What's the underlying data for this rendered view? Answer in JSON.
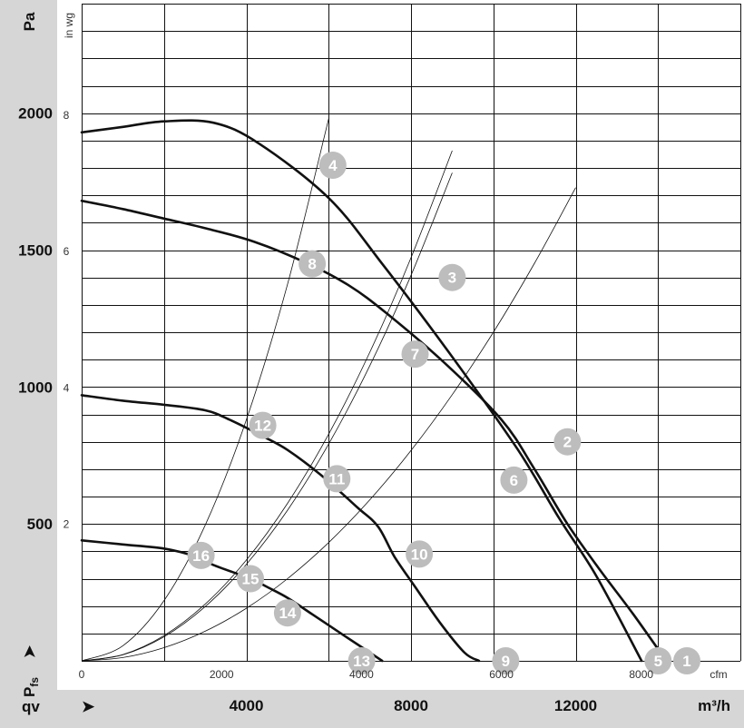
{
  "chart_data": {
    "type": "line",
    "x_units": {
      "primary": "m³/h",
      "secondary": "cfm",
      "primary_label": "qv",
      "primary_ticks": [
        4000,
        8000,
        12000
      ],
      "secondary_ticks": [
        0,
        2000,
        4000,
        6000,
        8000
      ],
      "xlim_m3h": [
        0,
        16000
      ]
    },
    "y_units": {
      "primary": "Pa",
      "secondary": "in wg",
      "primary_label": "Pfs",
      "primary_ticks": [
        500,
        1000,
        1500,
        2000
      ],
      "secondary_ticks": [
        2,
        4,
        6,
        8
      ],
      "ylim_pa": [
        0,
        2400
      ]
    },
    "grid": true,
    "series": [
      {
        "points": [
          [
            0,
            1930
          ],
          [
            1000,
            1950
          ],
          [
            2000,
            1970
          ],
          [
            3200,
            1965
          ],
          [
            4300,
            1890
          ],
          [
            6000,
            1690
          ],
          [
            7300,
            1450
          ],
          [
            9000,
            1110
          ],
          [
            10600,
            770
          ],
          [
            11600,
            520
          ],
          [
            12500,
            310
          ],
          [
            13600,
            0
          ]
        ]
      },
      {
        "points": [
          [
            0,
            1680
          ],
          [
            1000,
            1650
          ],
          [
            2000,
            1615
          ],
          [
            3000,
            1580
          ],
          [
            4200,
            1530
          ],
          [
            5500,
            1450
          ],
          [
            6500,
            1370
          ],
          [
            7400,
            1270
          ],
          [
            8800,
            1090
          ],
          [
            10200,
            880
          ],
          [
            11000,
            700
          ],
          [
            11800,
            500
          ],
          [
            12600,
            330
          ],
          [
            13400,
            170
          ],
          [
            14200,
            0
          ]
        ]
      },
      {
        "points": [
          [
            0,
            970
          ],
          [
            1000,
            950
          ],
          [
            2000,
            935
          ],
          [
            3000,
            915
          ],
          [
            3600,
            880
          ],
          [
            4400,
            820
          ],
          [
            5000,
            770
          ],
          [
            5800,
            680
          ],
          [
            6700,
            560
          ],
          [
            7200,
            490
          ],
          [
            7600,
            380
          ],
          [
            8100,
            270
          ],
          [
            8700,
            140
          ],
          [
            9300,
            30
          ],
          [
            9650,
            0
          ]
        ]
      },
      {
        "points": [
          [
            0,
            440
          ],
          [
            1000,
            425
          ],
          [
            2000,
            410
          ],
          [
            2800,
            380
          ],
          [
            3200,
            350
          ],
          [
            4100,
            300
          ],
          [
            4500,
            270
          ],
          [
            5000,
            230
          ],
          [
            5600,
            170
          ],
          [
            6400,
            90
          ],
          [
            6900,
            40
          ],
          [
            7300,
            0
          ]
        ]
      }
    ],
    "system_curves": [
      {
        "points": [
          [
            0,
            0
          ],
          [
            1000,
            22
          ],
          [
            2000,
            88
          ],
          [
            3000,
            198
          ],
          [
            4000,
            352
          ],
          [
            5000,
            550
          ],
          [
            6000,
            792
          ],
          [
            7000,
            1078
          ],
          [
            8000,
            1408
          ],
          [
            9000,
            1782
          ]
        ]
      },
      {
        "points": [
          [
            0,
            0
          ],
          [
            1000,
            55
          ],
          [
            2000,
            220
          ],
          [
            3000,
            495
          ],
          [
            4000,
            880
          ],
          [
            5000,
            1375
          ],
          [
            6000,
            1980
          ]
        ]
      },
      {
        "points": [
          [
            0,
            0
          ],
          [
            1000,
            12
          ],
          [
            2000,
            48
          ],
          [
            3000,
            108
          ],
          [
            4000,
            192
          ],
          [
            5000,
            300
          ],
          [
            6000,
            432
          ],
          [
            7000,
            588
          ],
          [
            8000,
            768
          ],
          [
            9000,
            972
          ],
          [
            10000,
            1200
          ],
          [
            11000,
            1452
          ],
          [
            12000,
            1728
          ]
        ]
      },
      {
        "points": [
          [
            0,
            0
          ],
          [
            1000,
            23
          ],
          [
            2000,
            92
          ],
          [
            3000,
            207
          ],
          [
            4000,
            368
          ],
          [
            5000,
            575
          ],
          [
            6000,
            828
          ],
          [
            7000,
            1127
          ],
          [
            8000,
            1472
          ],
          [
            9000,
            1863
          ]
        ]
      }
    ],
    "operating_points": [
      {
        "id": "1",
        "x": 14700,
        "y": 0
      },
      {
        "id": "2",
        "x": 11800,
        "y": 800
      },
      {
        "id": "3",
        "x": 9000,
        "y": 1400
      },
      {
        "id": "4",
        "x": 6100,
        "y": 1810
      },
      {
        "id": "5",
        "x": 14000,
        "y": 0
      },
      {
        "id": "6",
        "x": 10500,
        "y": 660
      },
      {
        "id": "7",
        "x": 8100,
        "y": 1120
      },
      {
        "id": "8",
        "x": 5600,
        "y": 1450
      },
      {
        "id": "9",
        "x": 10300,
        "y": 0
      },
      {
        "id": "10",
        "x": 8200,
        "y": 390
      },
      {
        "id": "11",
        "x": 6200,
        "y": 665
      },
      {
        "id": "12",
        "x": 4400,
        "y": 860
      },
      {
        "id": "13",
        "x": 6800,
        "y": 0
      },
      {
        "id": "14",
        "x": 5000,
        "y": 175
      },
      {
        "id": "15",
        "x": 4100,
        "y": 300
      },
      {
        "id": "16",
        "x": 2900,
        "y": 385
      }
    ]
  },
  "labels": {
    "y_unit_primary": "Pa",
    "y_unit_secondary": "in wg",
    "y_axis_symbol": "Pfs",
    "y_axis_symbol_main": "P",
    "y_axis_symbol_sub": "fs",
    "x_axis_symbol": "qv",
    "x_unit_primary": "m³/h",
    "x_unit_secondary": "cfm",
    "arrow_glyph": "➤"
  },
  "colors": {
    "band": "#d6d6d6",
    "curve": "#111111",
    "point_fill": "#bdbdbd",
    "point_text": "#ffffff"
  }
}
